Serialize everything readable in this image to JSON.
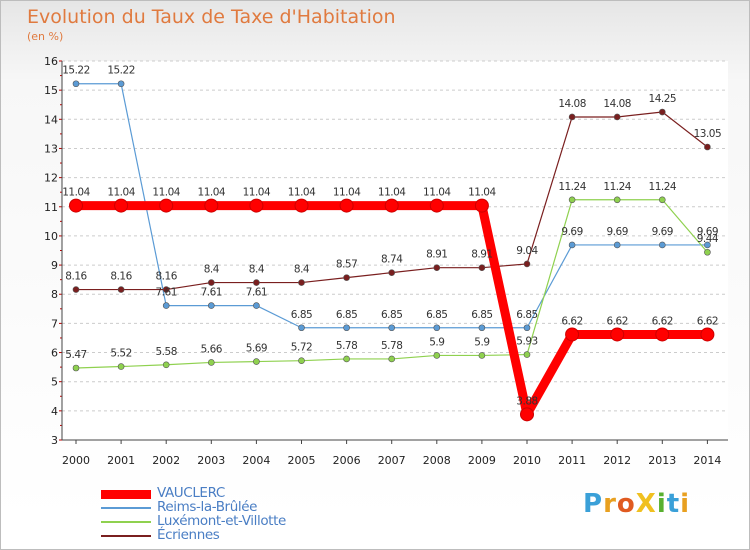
{
  "title": "Evolution du Taux de Taxe d'Habitation",
  "unit_label": "(en %)",
  "brand": "ProXiti",
  "chart_data": {
    "type": "line",
    "title": "Evolution du Taux de Taxe d'Habitation",
    "ylabel": "(en %)",
    "ylim": [
      3,
      16
    ],
    "yticks": [
      3,
      4,
      5,
      6,
      7,
      8,
      9,
      10,
      11,
      12,
      13,
      14,
      15,
      16
    ],
    "x": [
      "2000",
      "2001",
      "2002",
      "2003",
      "2004",
      "2005",
      "2006",
      "2007",
      "2008",
      "2009",
      "2010",
      "2011",
      "2012",
      "2013",
      "2014"
    ],
    "grid": "horizontal dashed",
    "legend_position": "bottom-left",
    "series": [
      {
        "name": "VAUCLERC",
        "color": "#ff0000",
        "values": [
          11.04,
          11.04,
          11.04,
          11.04,
          11.04,
          11.04,
          11.04,
          11.04,
          11.04,
          11.04,
          3.88,
          6.62,
          6.62,
          6.62,
          6.62
        ],
        "labels": [
          "11.04",
          "11.04",
          "11.04",
          "11.04",
          "11.04",
          "11.04",
          "11.04",
          "11.04",
          "11.04",
          "11.04",
          "3.88",
          "6.62",
          "6.62",
          "6.62",
          "6.62"
        ]
      },
      {
        "name": "Reims-la-Brûlée",
        "color": "#5b9bd5",
        "values": [
          15.22,
          15.22,
          7.61,
          7.61,
          7.61,
          6.85,
          6.85,
          6.85,
          6.85,
          6.85,
          6.85,
          9.69,
          9.69,
          9.69,
          9.69
        ],
        "labels": [
          "15.22",
          "15.22",
          "7.61",
          "7.61",
          "7.61",
          "6.85",
          "6.85",
          "6.85",
          "6.85",
          "6.85",
          "6.85",
          "9.69",
          "9.69",
          "9.69",
          "9.69"
        ]
      },
      {
        "name": "Luxémont-et-Villotte",
        "color": "#8fd14f",
        "values": [
          5.47,
          5.52,
          5.58,
          5.66,
          5.69,
          5.72,
          5.78,
          5.78,
          5.9,
          5.9,
          5.93,
          11.24,
          11.24,
          11.24,
          9.44
        ],
        "labels": [
          "5.47",
          "5.52",
          "5.58",
          "5.66",
          "5.69",
          "5.72",
          "5.78",
          "5.78",
          "5.9",
          "5.9",
          "5.93",
          "11.24",
          "11.24",
          "11.24",
          "9.44"
        ]
      },
      {
        "name": "Écriennes",
        "color": "#7a1f1f",
        "values": [
          8.16,
          8.16,
          8.16,
          8.4,
          8.4,
          8.4,
          8.57,
          8.74,
          8.91,
          8.91,
          9.04,
          14.08,
          14.08,
          14.25,
          13.05
        ],
        "labels": [
          "8.16",
          "8.16",
          "8.16",
          "8.4",
          "8.4",
          "8.4",
          "8.57",
          "8.74",
          "8.91",
          "8.91",
          "9.04",
          "14.08",
          "14.08",
          "14.25",
          "13.05"
        ]
      }
    ]
  }
}
